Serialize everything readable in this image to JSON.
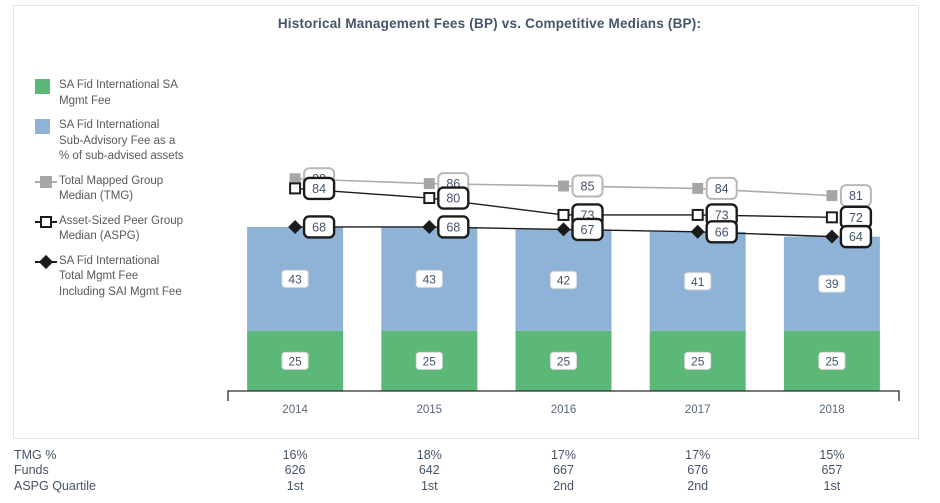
{
  "chart_data": {
    "type": "bar",
    "subtype": "stacked-bars-with-line-overlays",
    "title": "Historical Management Fees (BP) vs. Competitive Medians (BP):",
    "categories": [
      "2014",
      "2015",
      "2016",
      "2017",
      "2018"
    ],
    "bar_series": [
      {
        "name": "SA Fid International SA Mgmt Fee",
        "color": "#5cb878",
        "values": [
          25,
          25,
          25,
          25,
          25
        ]
      },
      {
        "name": "SA Fid International Sub-Advisory Fee as a % of sub-advised assets",
        "color": "#8fb3d7",
        "values": [
          43,
          43,
          42,
          41,
          39
        ]
      }
    ],
    "line_series": [
      {
        "name": "Total Mapped Group Median (TMG)",
        "line_color": "#ababab",
        "marker": "filled-square",
        "marker_color": "#a6a6a6",
        "label_border": "#b7b7b7",
        "values": [
          88,
          86,
          85,
          84,
          81
        ]
      },
      {
        "name": "Asset-Sized Peer Group Median (ASPG)",
        "line_color": "#1b1b1b",
        "marker": "open-square",
        "marker_color": "#ffffff",
        "label_border": "#1b1b1b",
        "values": [
          84,
          80,
          73,
          73,
          72
        ]
      },
      {
        "name": "SA Fid International Total Mgmt Fee Including SAI Mgmt Fee",
        "line_color": "#1b1b1b",
        "marker": "filled-diamond",
        "marker_color": "#1b1b1b",
        "label_border": "#1b1b1b",
        "values": [
          68,
          68,
          67,
          66,
          64
        ]
      }
    ],
    "ylim": [
      0,
      100
    ],
    "grid": false,
    "legend_position": "left"
  },
  "legend": {
    "items": [
      {
        "label": "SA Fid International SA\nMgmt Fee",
        "swatch": "green-square"
      },
      {
        "label": "SA Fid International\nSub-Advisory Fee as a\n% of sub-advised assets",
        "swatch": "blue-square"
      },
      {
        "label": "Total Mapped Group\nMedian (TMG)",
        "swatch": "gray-square-line"
      },
      {
        "label": "Asset-Sized Peer Group\nMedian (ASPG)",
        "swatch": "open-square-line"
      },
      {
        "label": "SA Fid International\nTotal Mgmt Fee\nIncluding SAI Mgmt Fee",
        "swatch": "black-diamond-line"
      }
    ]
  },
  "stats_table": {
    "rows": [
      {
        "label": "TMG %",
        "values": [
          "16%",
          "18%",
          "17%",
          "17%",
          "15%"
        ]
      },
      {
        "label": "Funds",
        "values": [
          "626",
          "642",
          "667",
          "676",
          "657"
        ]
      },
      {
        "label": "ASPG Quartile",
        "values": [
          "1st",
          "1st",
          "2nd",
          "2nd",
          "1st"
        ]
      }
    ]
  },
  "colors": {
    "green_bar": "#5cb878",
    "blue_bar": "#8fb3d7",
    "tmg_gray_line": "#ababab",
    "tmg_gray_marker": "#a6a6a6",
    "line_black": "#1b1b1b",
    "value_text": "#44546a",
    "legend_text": "#595959",
    "axis_text": "#57677a",
    "frame_border": "#e2e2e2",
    "bar_label_border": "#dcdcdc"
  }
}
